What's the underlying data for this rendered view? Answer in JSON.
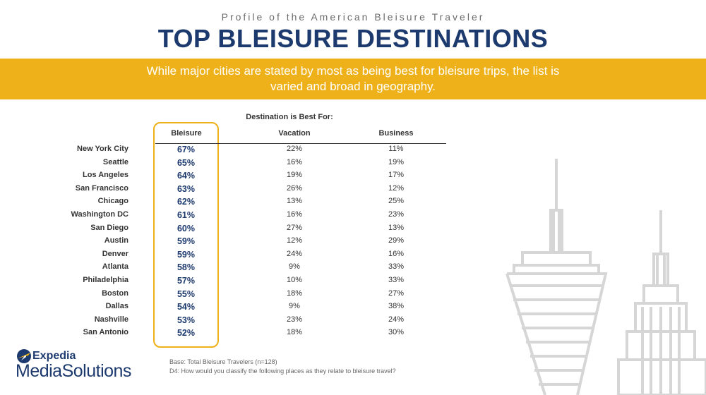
{
  "header": {
    "subtitle": "Profile of the American Bleisure Traveler",
    "title": "TOP BLEISURE DESTINATIONS"
  },
  "banner": {
    "text": "While major cities are stated by most as being best for bleisure trips, the list is varied and broad in geography."
  },
  "table": {
    "group_header": "Destination is Best For:",
    "columns": [
      "Bleisure",
      "Vacation",
      "Business"
    ],
    "rows": [
      {
        "city": "New York City",
        "bleisure": "67%",
        "vacation": "22%",
        "business": "11%"
      },
      {
        "city": "Seattle",
        "bleisure": "65%",
        "vacation": "16%",
        "business": "19%"
      },
      {
        "city": "Los Angeles",
        "bleisure": "64%",
        "vacation": "19%",
        "business": "17%"
      },
      {
        "city": "San Francisco",
        "bleisure": "63%",
        "vacation": "26%",
        "business": "12%"
      },
      {
        "city": "Chicago",
        "bleisure": "62%",
        "vacation": "13%",
        "business": "25%"
      },
      {
        "city": "Washington DC",
        "bleisure": "61%",
        "vacation": "16%",
        "business": "23%"
      },
      {
        "city": "San Diego",
        "bleisure": "60%",
        "vacation": "27%",
        "business": "13%"
      },
      {
        "city": "Austin",
        "bleisure": "59%",
        "vacation": "12%",
        "business": "29%"
      },
      {
        "city": "Denver",
        "bleisure": "59%",
        "vacation": "24%",
        "business": "16%"
      },
      {
        "city": "Atlanta",
        "bleisure": "58%",
        "vacation": "9%",
        "business": "33%"
      },
      {
        "city": "Philadelphia",
        "bleisure": "57%",
        "vacation": "10%",
        "business": "33%"
      },
      {
        "city": "Boston",
        "bleisure": "55%",
        "vacation": "18%",
        "business": "27%"
      },
      {
        "city": "Dallas",
        "bleisure": "54%",
        "vacation": "9%",
        "business": "38%"
      },
      {
        "city": "Nashville",
        "bleisure": "53%",
        "vacation": "23%",
        "business": "24%"
      },
      {
        "city": "San Antonio",
        "bleisure": "52%",
        "vacation": "18%",
        "business": "30%"
      }
    ]
  },
  "notes": {
    "base": "Base: Total Bleisure Travelers (n=128)",
    "question": "D4: How would you classify the following places as they relate to bleisure travel?"
  },
  "logo": {
    "line1": "Expedia",
    "line2": "MediaSolutions"
  },
  "colors": {
    "accent": "#eeb119",
    "navy": "#1d3a6e"
  },
  "icons": [
    "expedia-globe-icon",
    "skyline-illustration"
  ]
}
